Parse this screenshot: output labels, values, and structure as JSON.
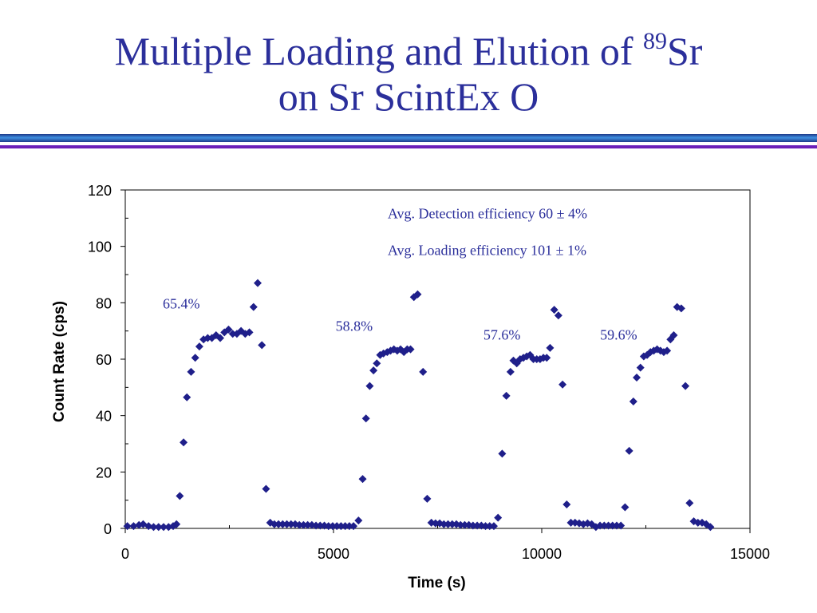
{
  "slide": {
    "title_line1_pre": "Multiple Loading and Elution of ",
    "title_sup": "89",
    "title_line1_post": "Sr",
    "title_line2": "on Sr ScintEx O",
    "title_color": "#2b2f9b",
    "rule_colors": [
      "#1d3a8a",
      "#6b1fb8"
    ]
  },
  "chart_data": {
    "type": "scatter",
    "title": "",
    "xlabel": "Time (s)",
    "ylabel": "Count Rate (cps)",
    "xlim": [
      0,
      15000
    ],
    "ylim": [
      0,
      120
    ],
    "x_ticks": [
      0,
      5000,
      10000,
      15000
    ],
    "x_tick_labels": [
      "0",
      "5000",
      "10000",
      "15000"
    ],
    "y_ticks": [
      0,
      20,
      40,
      60,
      80,
      100,
      120
    ],
    "y_tick_labels": [
      "0",
      "20",
      "40",
      "60",
      "80",
      "100",
      "120"
    ],
    "grid": false,
    "marker": "diamond",
    "marker_color": "#1f1f8a",
    "annotation_color": "#2b2f9b",
    "annotations": [
      {
        "text": "Avg. Detection efficiency 60 ± 4%",
        "x": 6300,
        "y": 110
      },
      {
        "text": "Avg. Loading efficiency 101 ± 1%",
        "x": 6300,
        "y": 97
      },
      {
        "text": "65.4%",
        "x": 900,
        "y": 78
      },
      {
        "text": "58.8%",
        "x": 5050,
        "y": 70
      },
      {
        "text": "57.6%",
        "x": 8600,
        "y": 67
      },
      {
        "text": "59.6%",
        "x": 11400,
        "y": 67
      }
    ],
    "series": [
      {
        "points": [
          [
            50,
            0.8
          ],
          [
            200,
            0.8
          ],
          [
            330,
            1.2
          ],
          [
            430,
            1.5
          ],
          [
            560,
            0.8
          ],
          [
            680,
            0.5
          ],
          [
            800,
            0.5
          ],
          [
            920,
            0.5
          ],
          [
            1040,
            0.5
          ],
          [
            1150,
            0.8
          ],
          [
            1230,
            1.5
          ],
          [
            1310,
            11.5
          ],
          [
            1400,
            30.5
          ],
          [
            1480,
            46.5
          ],
          [
            1580,
            55.5
          ],
          [
            1680,
            60.5
          ],
          [
            1780,
            64.5
          ],
          [
            1880,
            67
          ],
          [
            1980,
            67.5
          ],
          [
            2080,
            67.5
          ],
          [
            2180,
            68.5
          ],
          [
            2280,
            67.5
          ],
          [
            2380,
            69.5
          ],
          [
            2480,
            70.5
          ],
          [
            2580,
            69
          ],
          [
            2680,
            69
          ],
          [
            2780,
            70
          ],
          [
            2880,
            69
          ],
          [
            2980,
            69.5
          ],
          [
            3080,
            78.5
          ],
          [
            3180,
            87
          ],
          [
            3280,
            65
          ],
          [
            3380,
            14
          ],
          [
            3480,
            2
          ],
          [
            3580,
            1.5
          ],
          [
            3680,
            1.5
          ],
          [
            3780,
            1.5
          ],
          [
            3880,
            1.5
          ],
          [
            3980,
            1.5
          ],
          [
            4080,
            1.5
          ],
          [
            4180,
            1.2
          ],
          [
            4280,
            1.2
          ],
          [
            4380,
            1.2
          ],
          [
            4480,
            1.2
          ],
          [
            4580,
            1
          ],
          [
            4680,
            1
          ],
          [
            4780,
            1
          ],
          [
            4880,
            0.8
          ],
          [
            4980,
            0.8
          ],
          [
            5080,
            0.8
          ],
          [
            5180,
            0.8
          ],
          [
            5280,
            0.8
          ],
          [
            5380,
            0.8
          ],
          [
            5480,
            0.8
          ],
          [
            5600,
            2.8
          ],
          [
            5700,
            17.5
          ],
          [
            5780,
            39
          ],
          [
            5870,
            50.5
          ],
          [
            5960,
            56
          ],
          [
            6040,
            58.5
          ],
          [
            6120,
            61.5
          ],
          [
            6200,
            62
          ],
          [
            6290,
            62.5
          ],
          [
            6370,
            63
          ],
          [
            6450,
            63.5
          ],
          [
            6530,
            63
          ],
          [
            6610,
            63.5
          ],
          [
            6690,
            62.5
          ],
          [
            6770,
            63.5
          ],
          [
            6850,
            63.5
          ],
          [
            6930,
            82
          ],
          [
            7020,
            83
          ],
          [
            7150,
            55.5
          ],
          [
            7250,
            10.5
          ],
          [
            7350,
            2
          ],
          [
            7450,
            1.8
          ],
          [
            7550,
            1.8
          ],
          [
            7650,
            1.5
          ],
          [
            7750,
            1.5
          ],
          [
            7850,
            1.5
          ],
          [
            7950,
            1.5
          ],
          [
            8050,
            1.2
          ],
          [
            8150,
            1.2
          ],
          [
            8250,
            1.2
          ],
          [
            8350,
            1
          ],
          [
            8450,
            1
          ],
          [
            8550,
            1
          ],
          [
            8650,
            0.8
          ],
          [
            8750,
            0.8
          ],
          [
            8850,
            0.8
          ],
          [
            8950,
            3.8
          ],
          [
            9050,
            26.5
          ],
          [
            9150,
            47
          ],
          [
            9250,
            55.5
          ],
          [
            9320,
            59.5
          ],
          [
            9400,
            58.5
          ],
          [
            9480,
            60
          ],
          [
            9560,
            60.5
          ],
          [
            9640,
            61
          ],
          [
            9720,
            61.5
          ],
          [
            9800,
            60
          ],
          [
            9880,
            60
          ],
          [
            9960,
            60
          ],
          [
            10040,
            60.5
          ],
          [
            10120,
            60.5
          ],
          [
            10200,
            64
          ],
          [
            10300,
            77.5
          ],
          [
            10400,
            75.5
          ],
          [
            10500,
            51
          ],
          [
            10600,
            8.5
          ],
          [
            10700,
            2
          ],
          [
            10800,
            2
          ],
          [
            10900,
            1.8
          ],
          [
            11000,
            1.5
          ],
          [
            11100,
            1.8
          ],
          [
            11200,
            1.5
          ],
          [
            11300,
            0.5
          ],
          [
            11400,
            1
          ],
          [
            11500,
            1
          ],
          [
            11600,
            1
          ],
          [
            11700,
            1
          ],
          [
            11800,
            1
          ],
          [
            11900,
            1
          ],
          [
            12000,
            7.5
          ],
          [
            12100,
            27.5
          ],
          [
            12200,
            45
          ],
          [
            12280,
            53.5
          ],
          [
            12370,
            57
          ],
          [
            12450,
            61
          ],
          [
            12530,
            61.5
          ],
          [
            12610,
            62.5
          ],
          [
            12690,
            63
          ],
          [
            12770,
            63.5
          ],
          [
            12850,
            63
          ],
          [
            12930,
            62.5
          ],
          [
            13010,
            63
          ],
          [
            13090,
            67
          ],
          [
            13170,
            68.5
          ],
          [
            13250,
            78.5
          ],
          [
            13350,
            78
          ],
          [
            13450,
            50.5
          ],
          [
            13550,
            9
          ],
          [
            13650,
            2.5
          ],
          [
            13750,
            2
          ],
          [
            13850,
            2
          ],
          [
            13950,
            1.5
          ],
          [
            14050,
            0.5
          ]
        ]
      }
    ]
  }
}
